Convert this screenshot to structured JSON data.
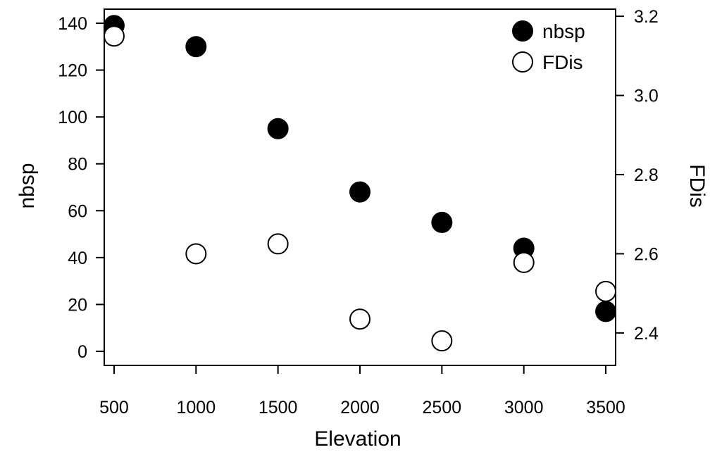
{
  "chart_data": {
    "type": "scatter",
    "x": [
      500,
      1000,
      1500,
      2000,
      2500,
      3000,
      3500
    ],
    "xlabel": "Elevation",
    "xticks": [
      500,
      1000,
      1500,
      2000,
      2500,
      3000,
      3500
    ],
    "xlim": [
      440,
      3560
    ],
    "ylabel": "nbsp",
    "yticks": [
      0,
      20,
      40,
      60,
      80,
      100,
      120,
      140
    ],
    "ylim": [
      -6,
      146
    ],
    "y2label": "FDis",
    "y2ticks": [
      "2.4",
      "2.6",
      "2.8",
      "3.0",
      "3.2"
    ],
    "y2ticks_values": [
      2.4,
      2.6,
      2.8,
      3.0,
      3.2
    ],
    "y2lim": [
      2.318,
      3.218
    ],
    "series": [
      {
        "name": "nbsp",
        "axis": "left",
        "marker": "filled-circle",
        "values": [
          139,
          130,
          95,
          68,
          55,
          44,
          17
        ]
      },
      {
        "name": "FDis",
        "axis": "right",
        "marker": "open-circle",
        "values": [
          3.15,
          2.6,
          2.625,
          2.435,
          2.38,
          2.578,
          2.505
        ]
      }
    ],
    "legend": {
      "position": "top-right",
      "entries": [
        "nbsp",
        "FDis"
      ]
    },
    "grid": false,
    "colors": {
      "filled": "#000000",
      "open_fill": "#ffffff",
      "stroke": "#000000"
    }
  }
}
